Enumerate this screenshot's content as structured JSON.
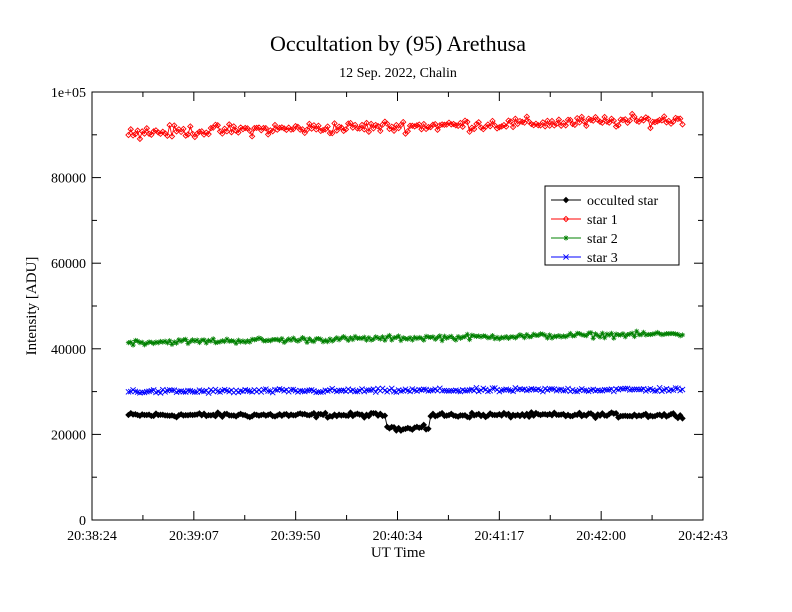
{
  "chart_data": {
    "type": "line",
    "title": "Occultation by (95) Arethusa",
    "subtitle": "12 Sep. 2022, Chalin",
    "xlabel": "UT Time",
    "ylabel": "Intensity [ADU]",
    "x_range": [
      "20:38:24",
      "20:42:52"
    ],
    "x_tick_labels": [
      "20:38:24",
      "20:39:07",
      "20:39:50",
      "20:40:34",
      "20:41:17",
      "20:42:00",
      "20:42:43"
    ],
    "ylim": [
      0,
      100000
    ],
    "y_tick_labels": [
      "0",
      "20000",
      "40000",
      "60000",
      "80000",
      "1e+05"
    ],
    "grid": false,
    "legend_position": "right",
    "x_start": "20:38:40",
    "x_end": "20:42:43",
    "samples": 243,
    "series": [
      {
        "name": "occulted star",
        "color": "#000000",
        "marker": "diamond",
        "baseline": 24500,
        "noise": 800,
        "segments": [
          {
            "from": "20:40:33",
            "to": "20:40:52",
            "value": 21500
          }
        ]
      },
      {
        "name": "star 1",
        "color": "#ff0000",
        "marker": "diamond-open",
        "baseline": 90500,
        "end_value": 93500,
        "noise": 2000
      },
      {
        "name": "star 2",
        "color": "#008000",
        "marker": "star",
        "baseline": 41500,
        "end_value": 43500,
        "noise": 900
      },
      {
        "name": "star 3",
        "color": "#0000ff",
        "marker": "x",
        "baseline": 30000,
        "end_value": 30500,
        "noise": 700
      }
    ]
  }
}
